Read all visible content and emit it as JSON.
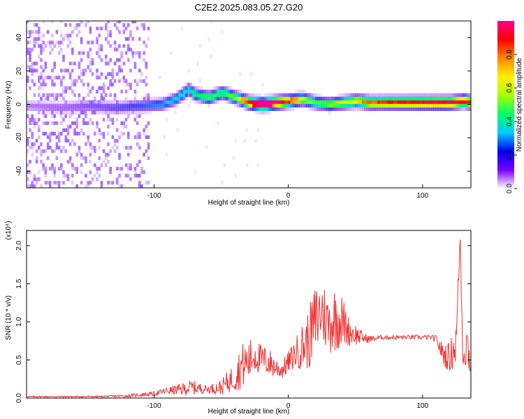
{
  "title": "C2E2.2025.083.05.27.G20",
  "chart_data": [
    {
      "type": "heatmap",
      "xlabel": "Height of straight line (km)",
      "ylabel": "Frequency (Hz)",
      "xlim": [
        -195,
        136
      ],
      "ylim": [
        -50,
        50
      ],
      "xticks": [
        -100,
        0,
        100
      ],
      "yticks": [
        -40,
        -20,
        0,
        20,
        40
      ],
      "colorbar": {
        "label": "Normalized spectral amplitude",
        "range": [
          0,
          1
        ],
        "ticks": [
          "0.0",
          "0.2",
          "0.4",
          "0.6",
          "0.8"
        ],
        "tick_values": [
          0,
          0.2,
          0.4,
          0.6,
          0.8
        ],
        "colors": [
          "#ffffff",
          "#7700ff",
          "#0000ff",
          "#00ccff",
          "#00ff66",
          "#aaff00",
          "#ffee00",
          "#ff8800",
          "#ff0000",
          "#ff0088"
        ]
      },
      "ridge": {
        "x": [
          -195,
          -170,
          -150,
          -130,
          -110,
          -95,
          -85,
          -78,
          -75,
          -70,
          -60,
          -50,
          -40,
          -30,
          -20,
          -10,
          0,
          10,
          20,
          30,
          40,
          50,
          60,
          80,
          100,
          110,
          120,
          130,
          136
        ],
        "y": [
          -2,
          -3,
          -2,
          -3,
          -2,
          -1,
          2,
          6,
          8,
          5,
          3,
          6,
          3,
          0,
          -1,
          0,
          1,
          2,
          0,
          -1,
          0,
          1,
          0,
          0,
          0,
          0,
          0,
          1,
          0
        ],
        "amplitude": [
          0.1,
          0.12,
          0.15,
          0.18,
          0.22,
          0.28,
          0.32,
          0.35,
          0.35,
          0.4,
          0.45,
          0.42,
          0.5,
          0.75,
          0.9,
          0.85,
          0.7,
          0.55,
          0.45,
          0.5,
          0.55,
          0.6,
          0.7,
          0.75,
          0.8,
          0.85,
          0.82,
          0.78,
          0.75
        ]
      }
    },
    {
      "type": "line",
      "xlabel": "Height of straight line (km)",
      "ylabel": "SNR (10 * v/v)",
      "y_multiplier": "(x10⁴)",
      "xlim": [
        -195,
        136
      ],
      "ylim": [
        0,
        2.2
      ],
      "xticks": [
        -100,
        0,
        100
      ],
      "yticks": [
        0.0,
        0.5,
        1.0,
        1.5,
        2.0
      ],
      "ytick_labels": [
        "0.0",
        "0.5",
        "1.0",
        "1.5",
        "2.0"
      ],
      "color": "#ee3333",
      "series": [
        {
          "x": [
            -195,
            -180,
            -160,
            -140,
            -120,
            -100,
            -90,
            -80,
            -72,
            -60,
            -50,
            -40,
            -35,
            -30,
            -25,
            -20,
            -15,
            -10,
            -5,
            0,
            5,
            10,
            15,
            20,
            25,
            30,
            35,
            40,
            45,
            50,
            55,
            60,
            70,
            80,
            90,
            100,
            105,
            110,
            115,
            120,
            125,
            128,
            130,
            133,
            136
          ],
          "y": [
            0.02,
            0.02,
            0.02,
            0.02,
            0.03,
            0.06,
            0.1,
            0.12,
            0.15,
            0.12,
            0.15,
            0.3,
            0.45,
            0.5,
            0.6,
            0.52,
            0.5,
            0.42,
            0.38,
            0.48,
            0.6,
            0.7,
            0.8,
            1.05,
            1.2,
            1.0,
            1.1,
            1.05,
            0.9,
            0.85,
            0.8,
            0.78,
            0.8,
            0.8,
            0.8,
            0.8,
            0.8,
            0.78,
            0.6,
            0.55,
            0.75,
            2.15,
            0.6,
            0.75,
            0.5
          ],
          "spread": [
            0.01,
            0.01,
            0.01,
            0.01,
            0.02,
            0.03,
            0.05,
            0.08,
            0.1,
            0.05,
            0.1,
            0.2,
            0.3,
            0.3,
            0.25,
            0.2,
            0.2,
            0.15,
            0.12,
            0.15,
            0.2,
            0.3,
            0.4,
            0.5,
            0.45,
            0.4,
            0.45,
            0.35,
            0.2,
            0.15,
            0.08,
            0.05,
            0.03,
            0.03,
            0.03,
            0.03,
            0.03,
            0.05,
            0.15,
            0.2,
            0.3,
            0.1,
            0.25,
            0.3,
            0.3
          ]
        }
      ]
    }
  ]
}
